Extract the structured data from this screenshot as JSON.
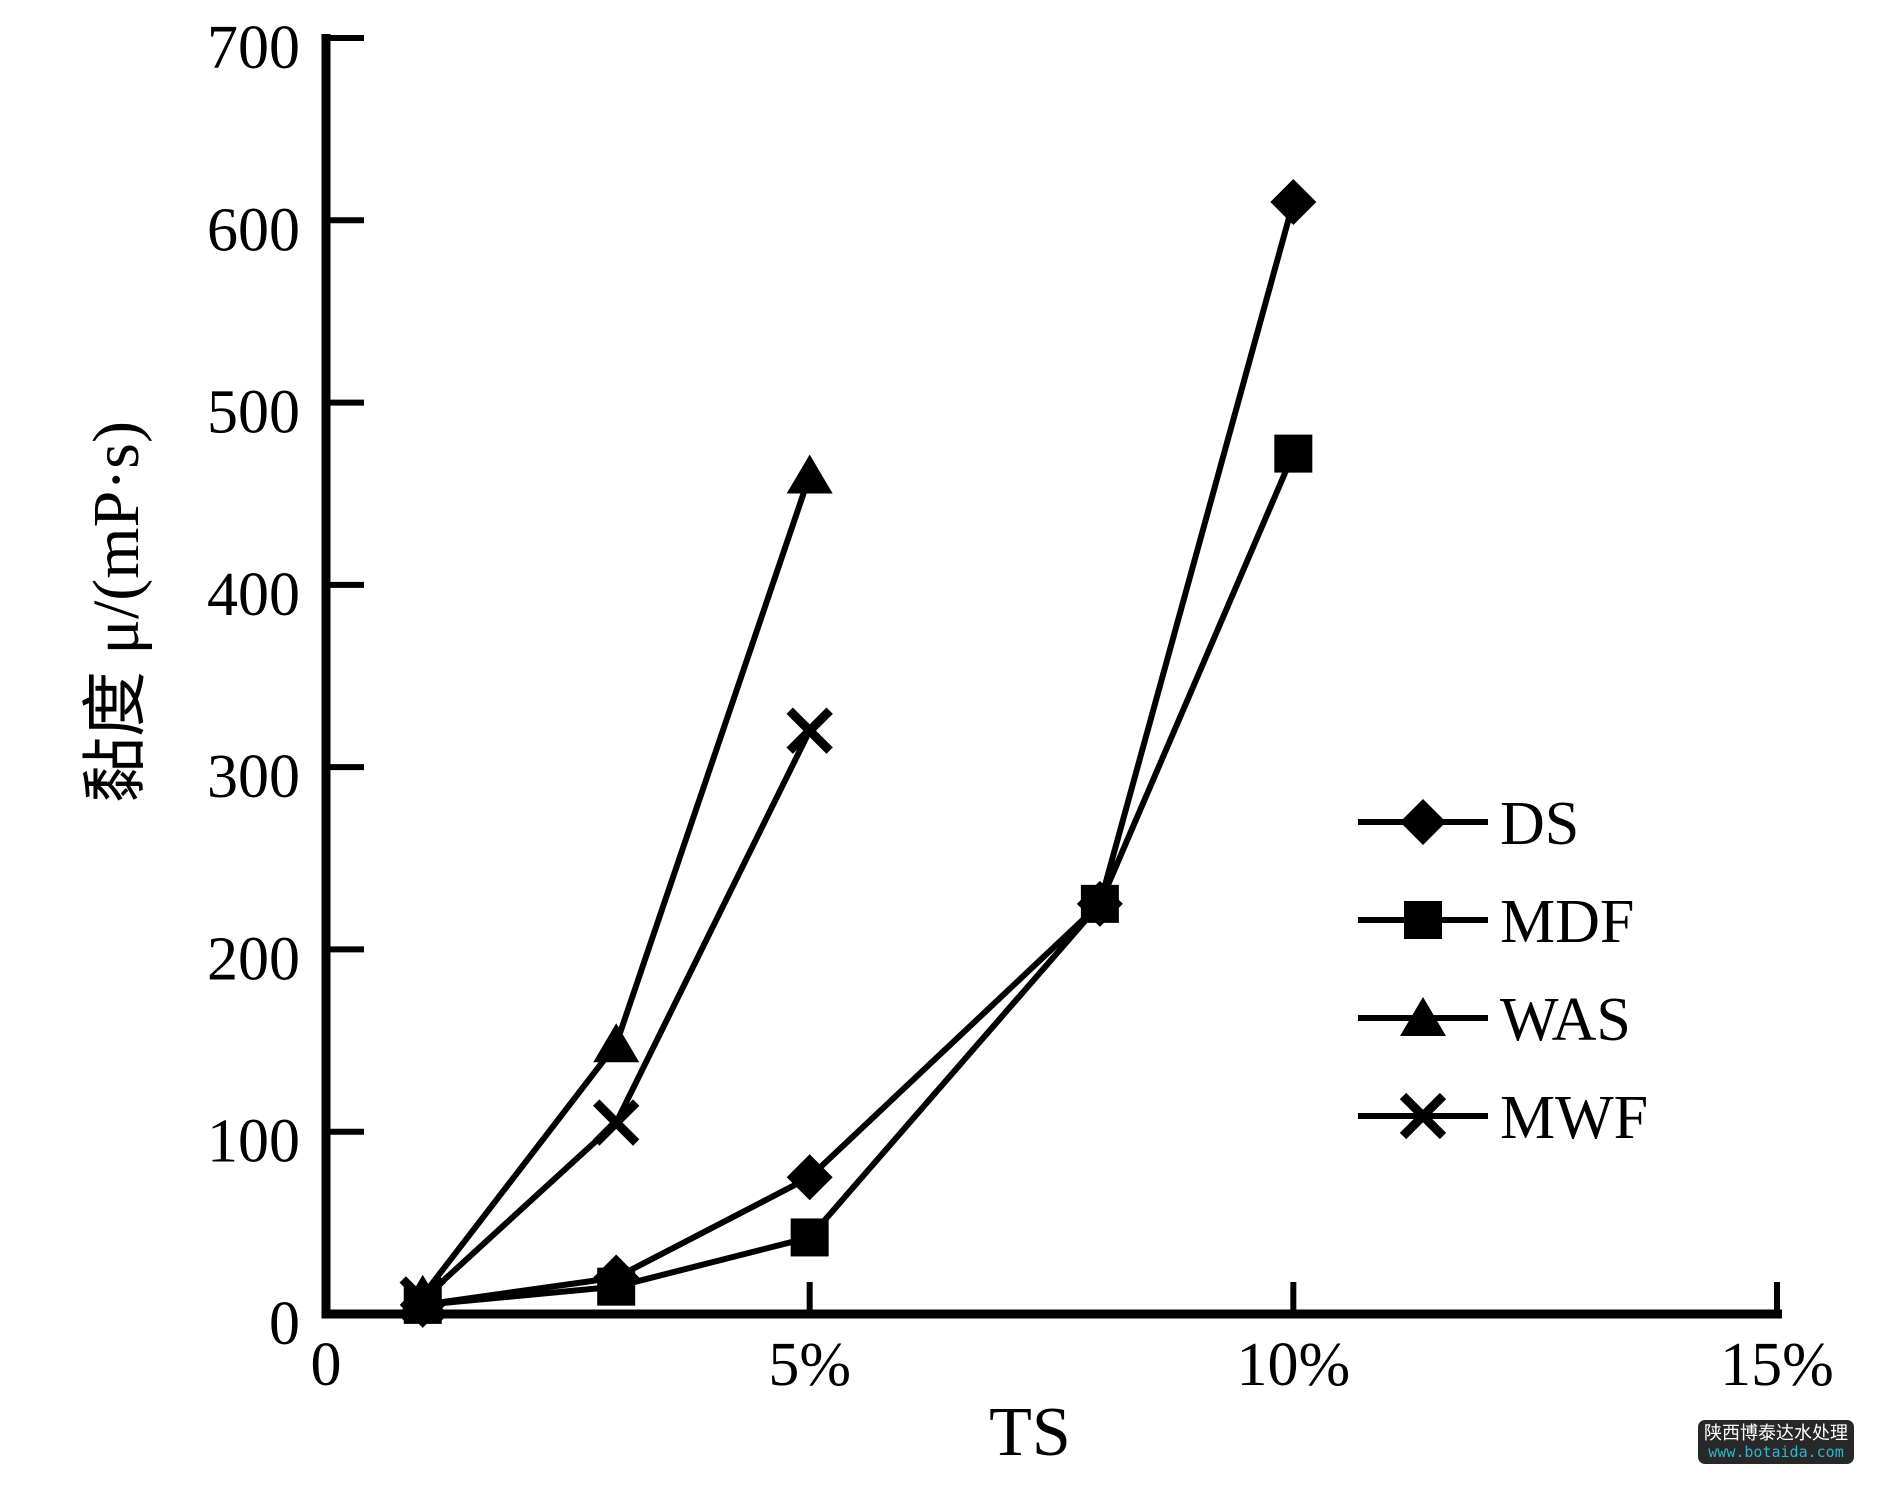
{
  "chart_data": {
    "type": "line",
    "title": "",
    "xlabel": "TS",
    "ylabel": "黏度 μ/(mP·s)",
    "xlim": [
      0,
      15
    ],
    "ylim": [
      0,
      700
    ],
    "grid": false,
    "legend_position": "right-middle",
    "background": "#ffffff",
    "line_color": "#000000",
    "x_ticks": [
      {
        "value": 0,
        "label": "0"
      },
      {
        "value": 5,
        "label": "5%"
      },
      {
        "value": 10,
        "label": "10%"
      },
      {
        "value": 15,
        "label": "15%"
      }
    ],
    "y_ticks": [
      {
        "value": 0,
        "label": "0"
      },
      {
        "value": 100,
        "label": "100"
      },
      {
        "value": 200,
        "label": "200"
      },
      {
        "value": 300,
        "label": "300"
      },
      {
        "value": 400,
        "label": "400"
      },
      {
        "value": 500,
        "label": "500"
      },
      {
        "value": 600,
        "label": "600"
      },
      {
        "value": 700,
        "label": "700"
      }
    ],
    "series": [
      {
        "name": "DS",
        "marker": "diamond",
        "x": [
          1,
          3,
          5,
          8,
          10
        ],
        "values": [
          5,
          20,
          75,
          225,
          610
        ]
      },
      {
        "name": "MDF",
        "marker": "square",
        "x": [
          1,
          3,
          5,
          8,
          10
        ],
        "values": [
          5,
          15,
          42,
          225,
          472
        ]
      },
      {
        "name": "WAS",
        "marker": "triangle",
        "x": [
          1,
          3,
          5
        ],
        "values": [
          10,
          148,
          460
        ]
      },
      {
        "name": "MWF",
        "marker": "x",
        "x": [
          1,
          3,
          5
        ],
        "values": [
          8,
          105,
          320
        ]
      }
    ]
  },
  "watermark": {
    "line1": "陕西博泰达水处理",
    "line2": "www.botaida.com",
    "bg_color": "#282828",
    "text_color": "#ffffff",
    "link_color": "#2bb6c9"
  }
}
